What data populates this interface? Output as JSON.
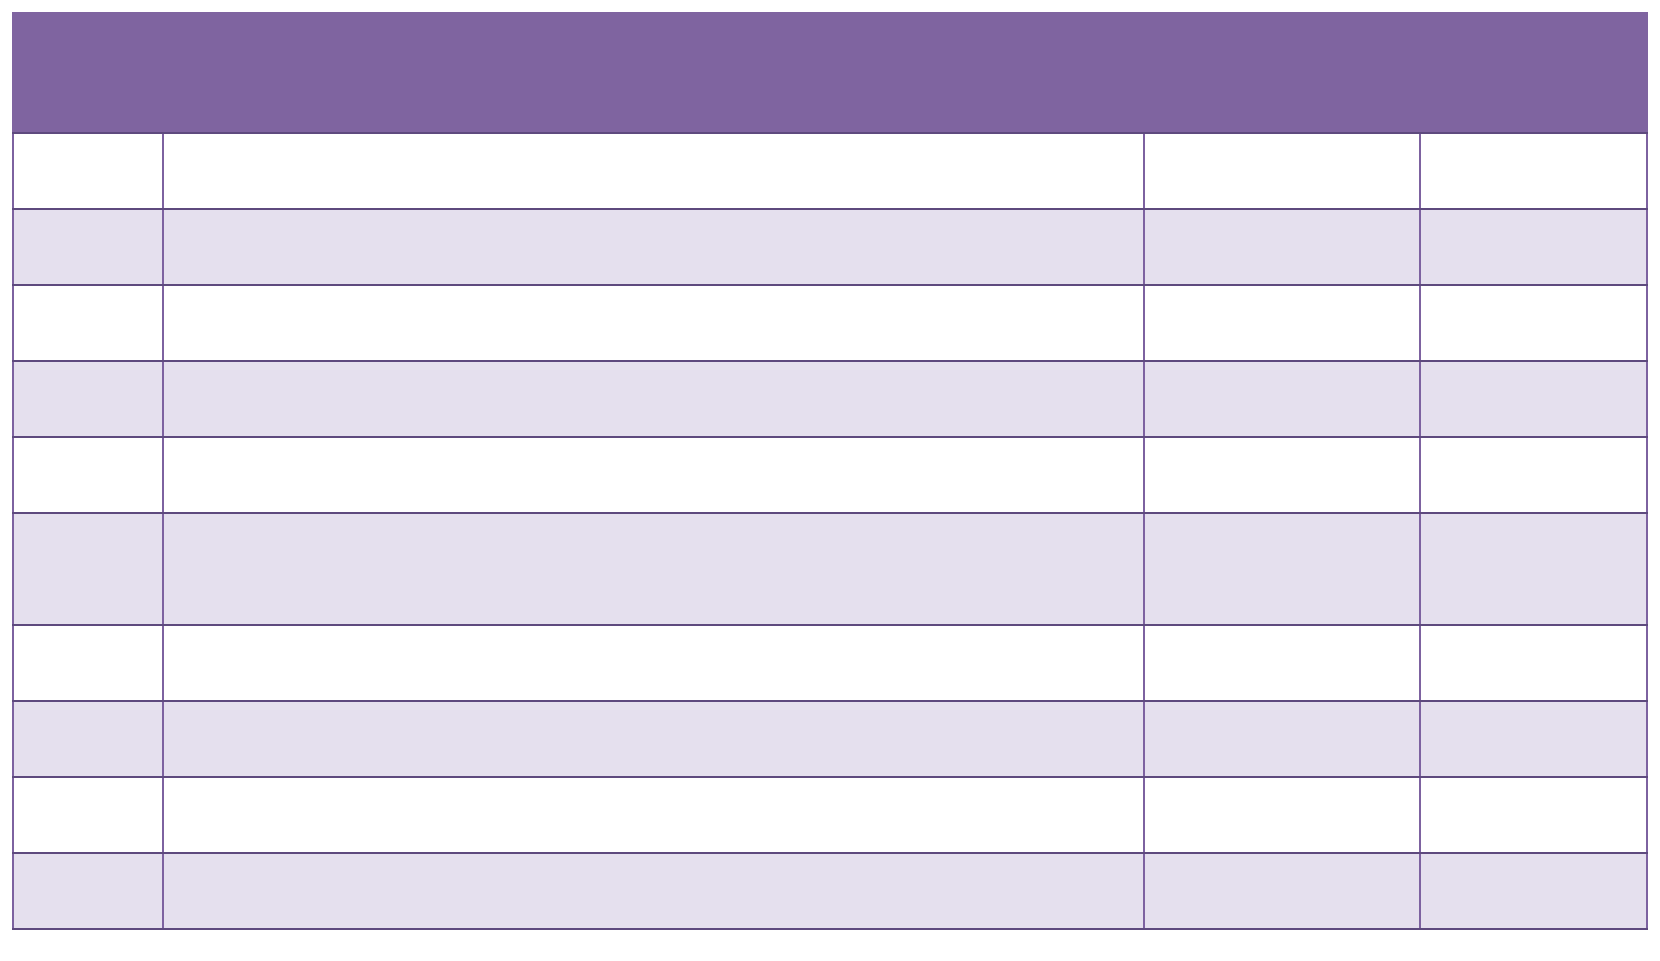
{
  "colors": {
    "header": "#7f64a0",
    "row_alt": "#e5e0ee",
    "row": "#ffffff",
    "border": "#5e4a7e"
  },
  "table": {
    "header": "",
    "columns": 4,
    "rows": [
      [
        "",
        "",
        "",
        ""
      ],
      [
        "",
        "",
        "",
        ""
      ],
      [
        "",
        "",
        "",
        ""
      ],
      [
        "",
        "",
        "",
        ""
      ],
      [
        "",
        "",
        "",
        ""
      ],
      [
        "",
        "",
        "",
        ""
      ],
      [
        "",
        "",
        "",
        ""
      ],
      [
        "",
        "",
        "",
        ""
      ],
      [
        "",
        "",
        "",
        ""
      ],
      [
        "",
        "",
        "",
        ""
      ]
    ]
  }
}
